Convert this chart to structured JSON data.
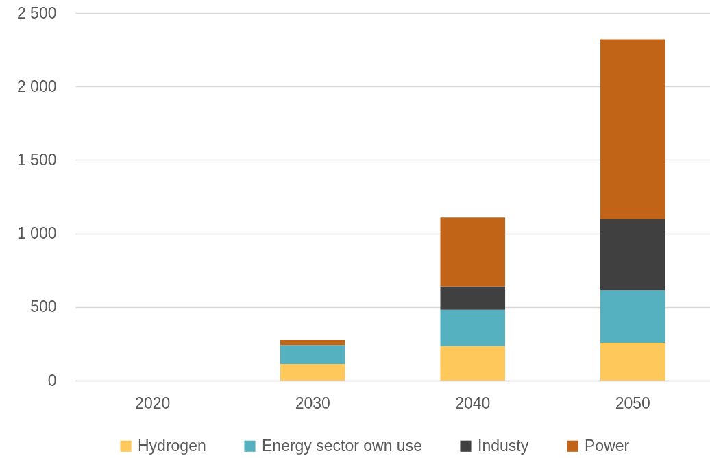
{
  "chart_data": {
    "type": "bar",
    "stacked": true,
    "categories": [
      "2020",
      "2030",
      "2040",
      "2050"
    ],
    "series": [
      {
        "name": "Hydrogen",
        "color": "#ffc85a",
        "values": [
          null,
          112,
          235,
          257
        ]
      },
      {
        "name": "Energy sector own use",
        "color": "#55b0bf",
        "values": [
          null,
          129,
          247,
          358
        ]
      },
      {
        "name": "Industy",
        "color": "#404040",
        "values": [
          null,
          null,
          158,
          482
        ]
      },
      {
        "name": "Power",
        "color": "#c26418",
        "values": [
          null,
          34,
          469,
          1223
        ]
      }
    ],
    "ylim": [
      0,
      2500
    ],
    "yticks": [
      0,
      500,
      {
        "value": 1000,
        "label": "1 000"
      },
      {
        "value": 1500,
        "label": "1 500"
      },
      {
        "value": 2000,
        "label": "2 000"
      },
      {
        "value": 2500,
        "label": "2 500"
      }
    ],
    "grid": "y",
    "legend": "bottom"
  }
}
